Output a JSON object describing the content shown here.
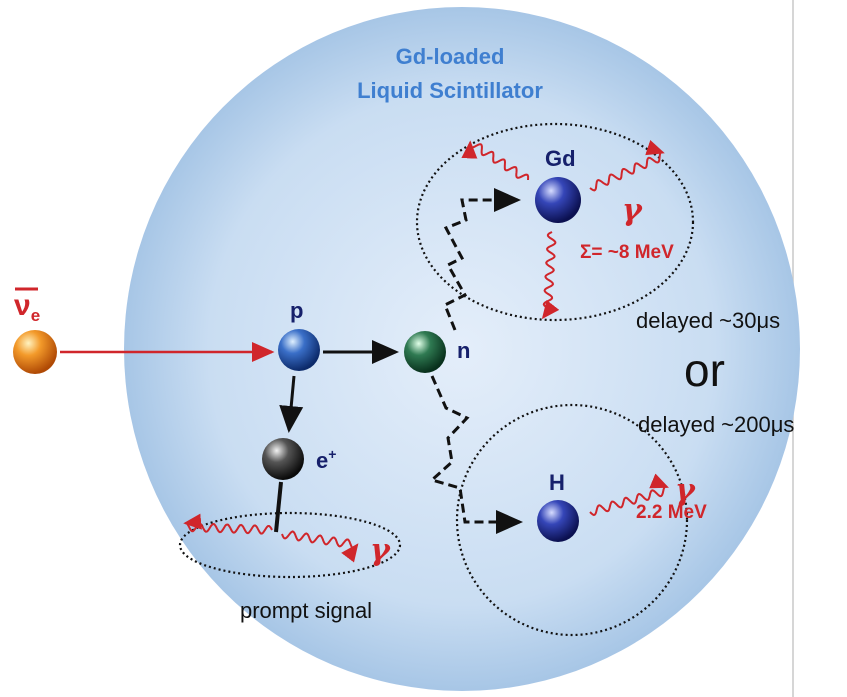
{
  "title": [
    "Gd-loaded",
    "Liquid Scintillator"
  ],
  "particles": {
    "antineutrino": {
      "symbol": "ν",
      "subscript": "e"
    },
    "proton": "p",
    "neutron": "n",
    "positron": {
      "symbol": "e",
      "superscript": "+"
    },
    "gadolinium": "Gd",
    "hydrogen": "H"
  },
  "gammas": [
    "γ",
    "γ",
    "γ"
  ],
  "energies": [
    "Σ= ~8 MeV",
    "2.2 MeV"
  ],
  "labels": {
    "prompt": "prompt signal",
    "delayed_gd": "delayed ~30μs",
    "or": "or",
    "delayed_h": "delayed ~200μs"
  }
}
